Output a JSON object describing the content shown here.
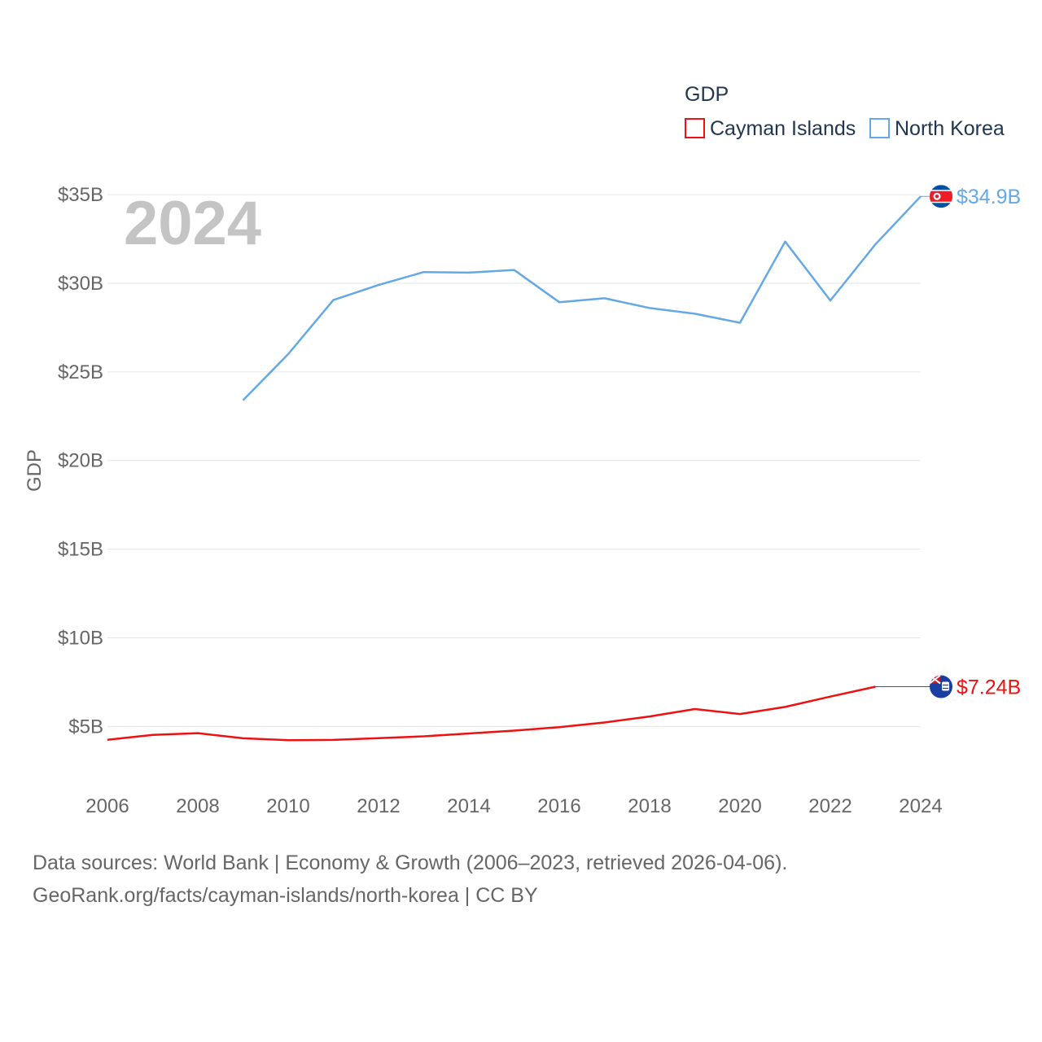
{
  "chart_data": {
    "type": "line",
    "legend_title": "GDP",
    "ylabel": "GDP",
    "xlabel": "",
    "year_watermark": "2024",
    "x": [
      2006,
      2007,
      2008,
      2009,
      2010,
      2011,
      2012,
      2013,
      2014,
      2015,
      2016,
      2017,
      2018,
      2019,
      2020,
      2021,
      2022,
      2023,
      2024
    ],
    "xlim": [
      2006,
      2024
    ],
    "ylim": [
      1.8,
      35.6
    ],
    "x_ticks": [
      {
        "value": 2006,
        "label": "2006"
      },
      {
        "value": 2008,
        "label": "2008"
      },
      {
        "value": 2010,
        "label": "2010"
      },
      {
        "value": 2012,
        "label": "2012"
      },
      {
        "value": 2014,
        "label": "2014"
      },
      {
        "value": 2016,
        "label": "2016"
      },
      {
        "value": 2018,
        "label": "2018"
      },
      {
        "value": 2020,
        "label": "2020"
      },
      {
        "value": 2022,
        "label": "2022"
      },
      {
        "value": 2024,
        "label": "2024"
      }
    ],
    "y_ticks": [
      {
        "value": 5,
        "label": "$5B"
      },
      {
        "value": 10,
        "label": "$10B"
      },
      {
        "value": 15,
        "label": "$15B"
      },
      {
        "value": 20,
        "label": "$20B"
      },
      {
        "value": 25,
        "label": "$25B"
      },
      {
        "value": 30,
        "label": "$30B"
      },
      {
        "value": 35,
        "label": "$35B"
      }
    ],
    "series": [
      {
        "name": "Cayman Islands",
        "color": "#ee1111",
        "values": [
          4.25,
          4.52,
          4.62,
          4.33,
          4.22,
          4.24,
          4.34,
          4.44,
          4.6,
          4.76,
          4.96,
          5.22,
          5.56,
          5.98,
          5.7,
          6.1,
          6.68,
          7.24,
          null
        ],
        "end_label": "$7.24B",
        "end_value": 7.24,
        "flag": "cayman-islands-flag-icon"
      },
      {
        "name": "North Korea",
        "color": "#64a8e6",
        "values": [
          null,
          null,
          null,
          23.4,
          26.0,
          29.05,
          29.9,
          30.63,
          30.6,
          30.75,
          28.93,
          29.15,
          28.6,
          28.28,
          27.77,
          32.35,
          29.03,
          32.2,
          34.9
        ],
        "end_label": "$34.9B",
        "end_value": 34.9,
        "flag": "north-korea-flag-icon"
      }
    ]
  },
  "footer": {
    "line1": "Data sources: World Bank | Economy & Growth (2006–2023, retrieved 2026-04-06).",
    "line2": "GeoRank.org/facts/cayman-islands/north-korea | CC BY"
  }
}
